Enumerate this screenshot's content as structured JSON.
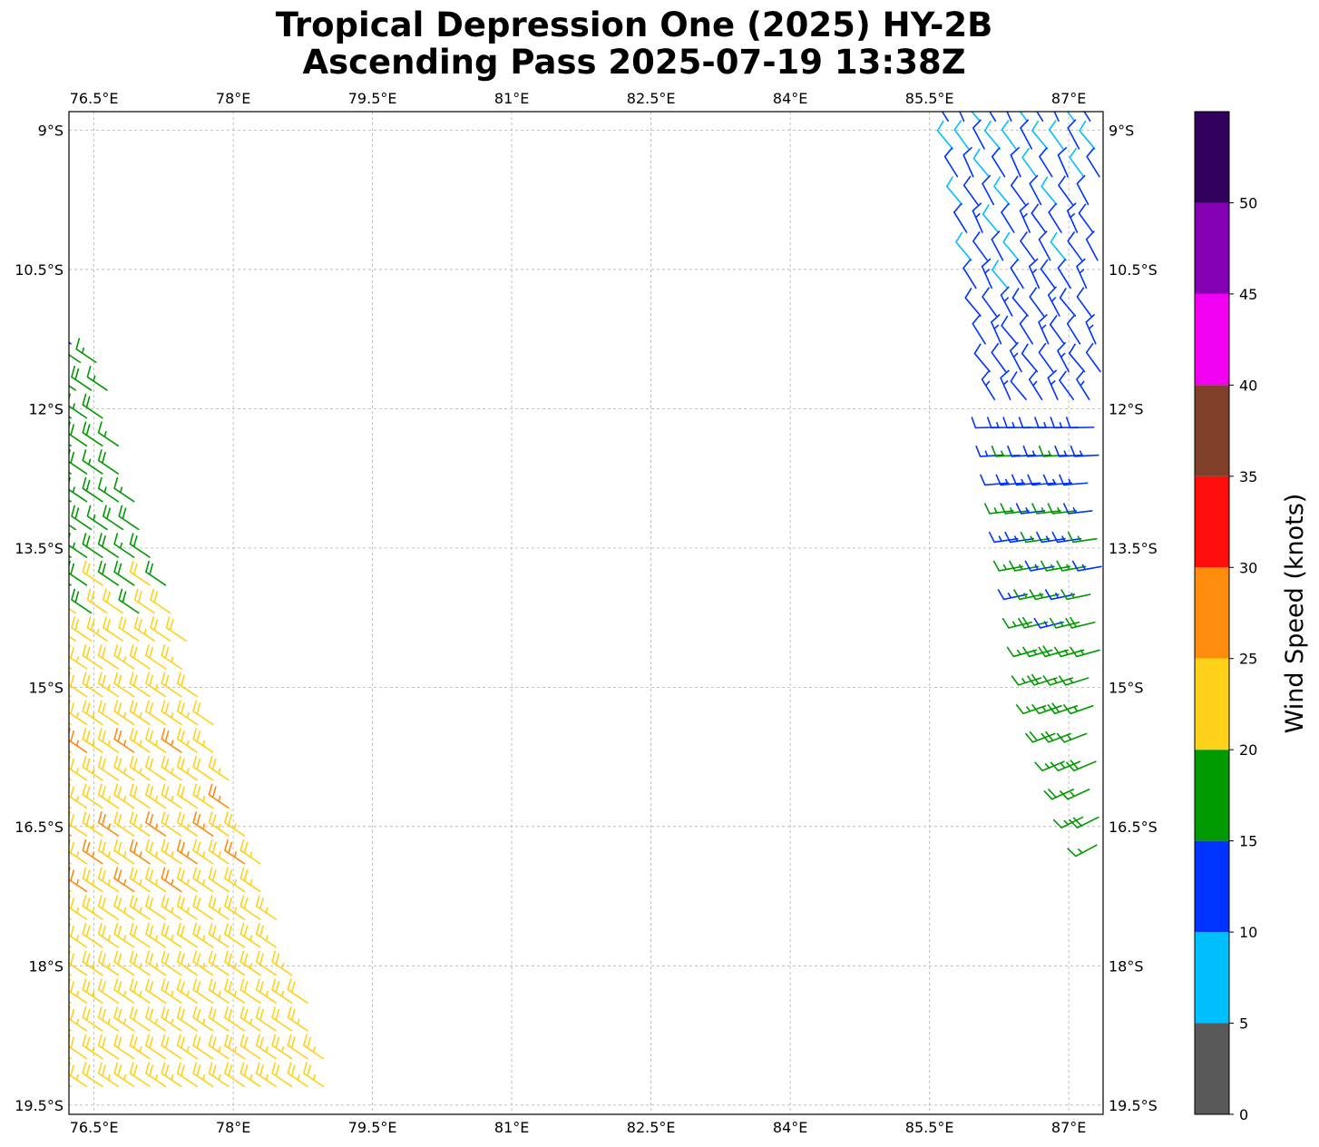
{
  "title": {
    "line1": "Tropical Depression One (2025) HY-2B",
    "line2": "Ascending Pass 2025-07-19 13:38Z"
  },
  "map": {
    "lon_range": [
      76.23,
      87.37
    ],
    "lat_range": [
      -19.6,
      -8.8
    ],
    "lon_ticks": [
      {
        "value": 76.5,
        "label": "76.5°E"
      },
      {
        "value": 78.0,
        "label": "78°E"
      },
      {
        "value": 79.5,
        "label": "79.5°E"
      },
      {
        "value": 81.0,
        "label": "81°E"
      },
      {
        "value": 82.5,
        "label": "82.5°E"
      },
      {
        "value": 84.0,
        "label": "84°E"
      },
      {
        "value": 85.5,
        "label": "85.5°E"
      },
      {
        "value": 87.0,
        "label": "87°E"
      }
    ],
    "lat_ticks": [
      {
        "value": -9.0,
        "label": "9°S"
      },
      {
        "value": -10.5,
        "label": "10.5°S"
      },
      {
        "value": -12.0,
        "label": "12°S"
      },
      {
        "value": -13.5,
        "label": "13.5°S"
      },
      {
        "value": -15.0,
        "label": "15°S"
      },
      {
        "value": -16.5,
        "label": "16.5°S"
      },
      {
        "value": -18.0,
        "label": "18°S"
      },
      {
        "value": -19.5,
        "label": "19.5°S"
      }
    ],
    "gridlines": true
  },
  "colorbar": {
    "label": "Wind Speed (knots)",
    "boundaries": [
      0,
      5,
      10,
      15,
      20,
      25,
      30,
      35,
      40,
      45,
      50,
      55
    ],
    "tick_labels": [
      "0",
      "5",
      "10",
      "15",
      "20",
      "25",
      "30",
      "35",
      "40",
      "45",
      "50"
    ],
    "colors": [
      "#595959",
      "#00bfff",
      "#0033ff",
      "#009900",
      "#ffd11a",
      "#ff8c0d",
      "#ff0d0d",
      "#7f3f28",
      "#f200f2",
      "#8300b3",
      "#30005c"
    ]
  },
  "chart_data": {
    "type": "scatter",
    "description_kind": "wind barbs (HY-2B scatterometer swaths)",
    "swaths": [
      {
        "name": "west swath",
        "rows": [
          {
            "lat": -11.3,
            "lon_start": 76.25,
            "lon_end": 76.4,
            "speed": 12
          },
          {
            "lat": -11.5,
            "lon_start": 76.35,
            "lon_end": 76.6,
            "speed": 17
          },
          {
            "lat": -11.8,
            "lon_start": 76.3,
            "lon_end": 76.7,
            "speed": 17
          },
          {
            "lat": -12.1,
            "lon_start": 76.25,
            "lon_end": 76.75,
            "speed": 18
          },
          {
            "lat": -12.4,
            "lon_start": 76.25,
            "lon_end": 76.8,
            "speed": 18
          },
          {
            "lat": -12.7,
            "lon_start": 76.25,
            "lon_end": 76.9,
            "speed": 18
          },
          {
            "lat": -13.0,
            "lon_start": 76.25,
            "lon_end": 77.0,
            "speed": 18
          },
          {
            "lat": -13.3,
            "lon_start": 76.3,
            "lon_end": 77.05,
            "speed": 18
          },
          {
            "lat": -13.6,
            "lon_start": 76.25,
            "lon_end": 77.15,
            "speed": 18
          },
          {
            "lat": -13.9,
            "lon_start": 76.25,
            "lon_end": 77.3,
            "speed": 19
          },
          {
            "lat": -14.2,
            "lon_start": 76.3,
            "lon_end": 77.4,
            "speed": 21
          },
          {
            "lat": -14.5,
            "lon_start": 76.3,
            "lon_end": 77.5,
            "speed": 22
          },
          {
            "lat": -14.8,
            "lon_start": 76.25,
            "lon_end": 77.6,
            "speed": 22
          },
          {
            "lat": -15.1,
            "lon_start": 76.25,
            "lon_end": 77.7,
            "speed": 22
          },
          {
            "lat": -15.4,
            "lon_start": 76.25,
            "lon_end": 77.8,
            "speed": 23
          },
          {
            "lat": -15.7,
            "lon_start": 76.25,
            "lon_end": 77.9,
            "speed": 24
          },
          {
            "lat": -16.0,
            "lon_start": 76.25,
            "lon_end": 78.0,
            "speed": 24
          },
          {
            "lat": -16.3,
            "lon_start": 76.25,
            "lon_end": 78.1,
            "speed": 24
          },
          {
            "lat": -16.6,
            "lon_start": 76.25,
            "lon_end": 78.2,
            "speed": 24
          },
          {
            "lat": -16.9,
            "lon_start": 76.25,
            "lon_end": 78.3,
            "speed": 24
          },
          {
            "lat": -17.2,
            "lon_start": 76.25,
            "lon_end": 78.4,
            "speed": 24
          },
          {
            "lat": -17.5,
            "lon_start": 76.25,
            "lon_end": 78.5,
            "speed": 24
          },
          {
            "lat": -17.8,
            "lon_start": 76.25,
            "lon_end": 78.6,
            "speed": 23
          },
          {
            "lat": -18.1,
            "lon_start": 76.25,
            "lon_end": 78.7,
            "speed": 23
          },
          {
            "lat": -18.4,
            "lon_start": 76.25,
            "lon_end": 78.8,
            "speed": 23
          },
          {
            "lat": -18.7,
            "lon_start": 76.25,
            "lon_end": 78.9,
            "speed": 23
          },
          {
            "lat": -19.0,
            "lon_start": 76.25,
            "lon_end": 79.0,
            "speed": 23
          },
          {
            "lat": -19.3,
            "lon_start": 76.25,
            "lon_end": 79.1,
            "speed": 23
          }
        ]
      },
      {
        "name": "east swath",
        "rows": [
          {
            "lat": -8.9,
            "lon_start": 85.7,
            "lon_end": 87.35,
            "speed": 10
          },
          {
            "lat": -9.2,
            "lon_start": 85.75,
            "lon_end": 87.35,
            "speed": 10
          },
          {
            "lat": -9.5,
            "lon_start": 85.8,
            "lon_end": 87.35,
            "speed": 10
          },
          {
            "lat": -9.8,
            "lon_start": 85.85,
            "lon_end": 87.35,
            "speed": 11
          },
          {
            "lat": -10.1,
            "lon_start": 85.9,
            "lon_end": 87.35,
            "speed": 11
          },
          {
            "lat": -10.4,
            "lon_start": 85.95,
            "lon_end": 87.35,
            "speed": 11
          },
          {
            "lat": -10.7,
            "lon_start": 86.0,
            "lon_end": 87.35,
            "speed": 11
          },
          {
            "lat": -11.0,
            "lon_start": 86.05,
            "lon_end": 87.35,
            "speed": 12
          },
          {
            "lat": -11.3,
            "lon_start": 86.1,
            "lon_end": 87.35,
            "speed": 12
          },
          {
            "lat": -11.6,
            "lon_start": 86.15,
            "lon_end": 87.35,
            "speed": 13
          },
          {
            "lat": -11.9,
            "lon_start": 86.2,
            "lon_end": 87.35,
            "speed": 13
          },
          {
            "lat": -12.2,
            "lon_start": 86.25,
            "lon_end": 87.35,
            "speed": 14
          },
          {
            "lat": -12.5,
            "lon_start": 86.3,
            "lon_end": 87.35,
            "speed": 14
          },
          {
            "lat": -12.8,
            "lon_start": 86.35,
            "lon_end": 87.35,
            "speed": 14
          },
          {
            "lat": -13.1,
            "lon_start": 86.4,
            "lon_end": 87.35,
            "speed": 15
          },
          {
            "lat": -13.4,
            "lon_start": 86.45,
            "lon_end": 87.35,
            "speed": 15
          },
          {
            "lat": -13.7,
            "lon_start": 86.5,
            "lon_end": 87.35,
            "speed": 15
          },
          {
            "lat": -14.0,
            "lon_start": 86.55,
            "lon_end": 87.35,
            "speed": 16
          },
          {
            "lat": -14.3,
            "lon_start": 86.6,
            "lon_end": 87.35,
            "speed": 16
          },
          {
            "lat": -14.6,
            "lon_start": 86.65,
            "lon_end": 87.35,
            "speed": 17
          },
          {
            "lat": -14.9,
            "lon_start": 86.7,
            "lon_end": 87.35,
            "speed": 17
          },
          {
            "lat": -15.2,
            "lon_start": 86.75,
            "lon_end": 87.35,
            "speed": 17
          },
          {
            "lat": -15.5,
            "lon_start": 86.85,
            "lon_end": 87.35,
            "speed": 17
          },
          {
            "lat": -15.8,
            "lon_start": 86.95,
            "lon_end": 87.35,
            "speed": 17
          },
          {
            "lat": -16.1,
            "lon_start": 87.05,
            "lon_end": 87.35,
            "speed": 17
          },
          {
            "lat": -16.4,
            "lon_start": 87.15,
            "lon_end": 87.35,
            "speed": 17
          },
          {
            "lat": -16.7,
            "lon_start": 87.3,
            "lon_end": 87.35,
            "speed": 17
          }
        ]
      }
    ]
  }
}
